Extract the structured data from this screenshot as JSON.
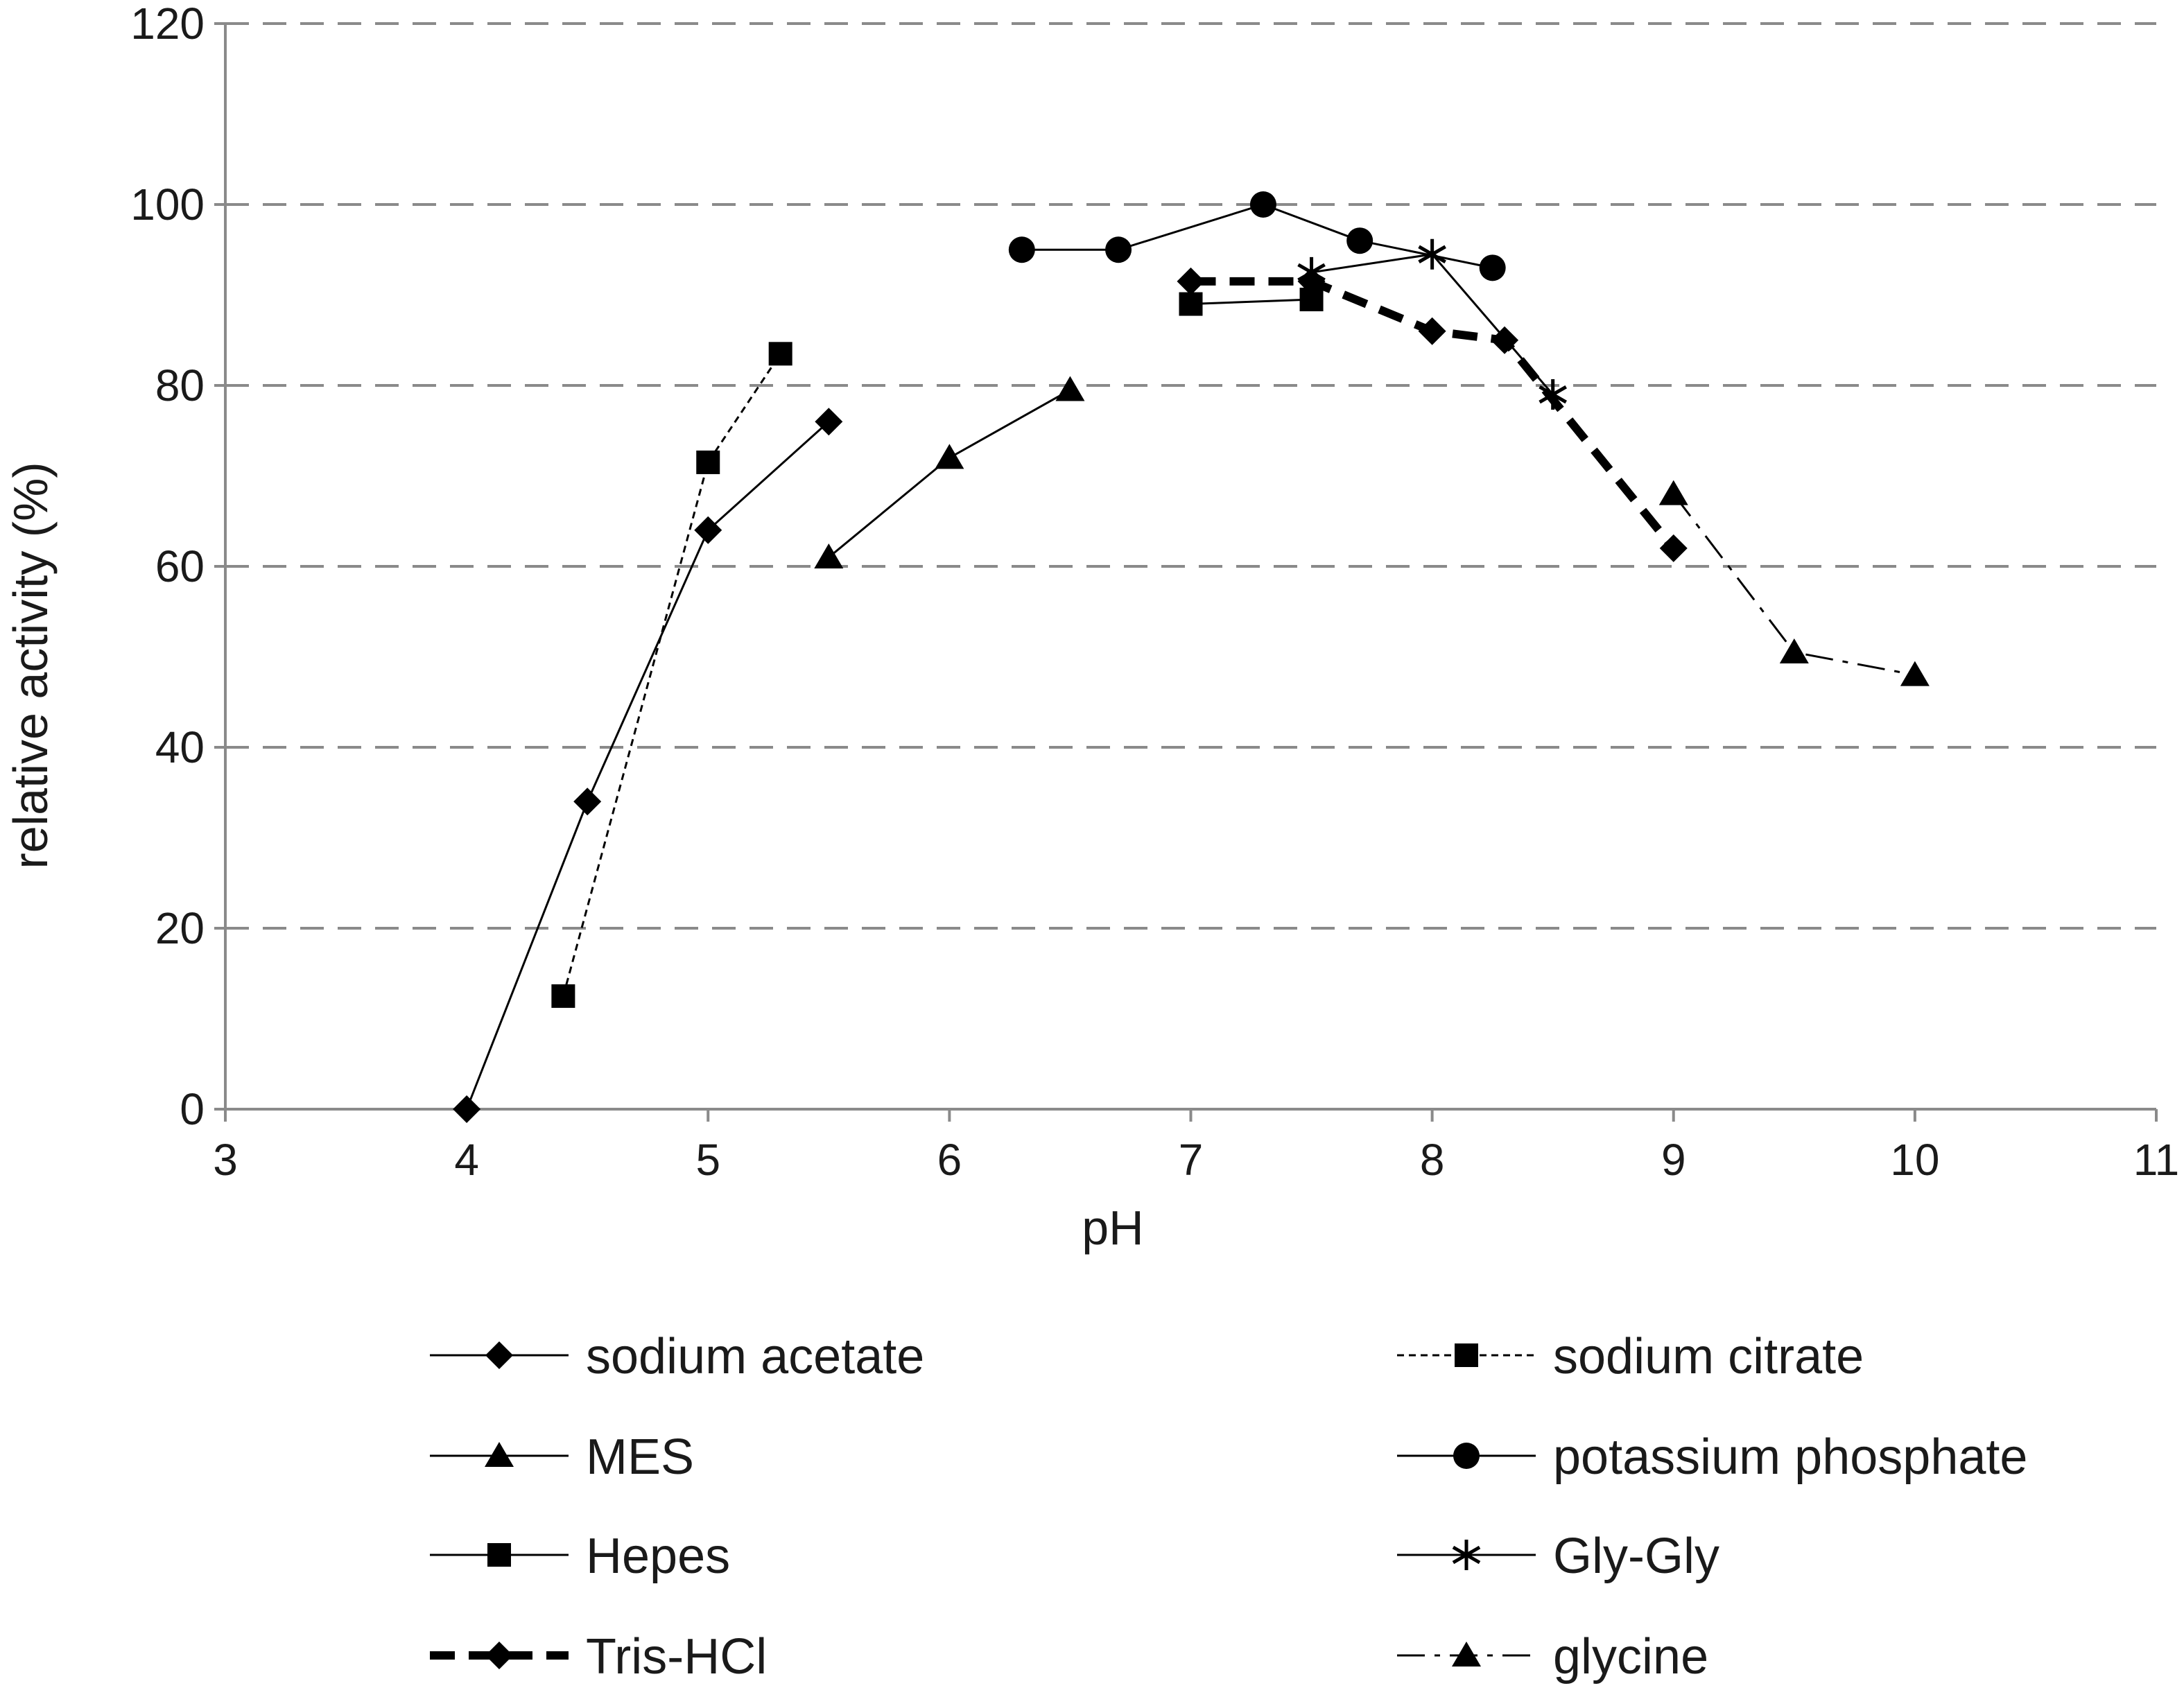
{
  "chart_data": {
    "type": "line",
    "xlabel": "pH",
    "ylabel": "relative activity (%)",
    "xlim": [
      3,
      11
    ],
    "ylim": [
      0,
      120
    ],
    "x_ticks": [
      "3",
      "4",
      "5",
      "6",
      "7",
      "8",
      "9",
      "10",
      "11"
    ],
    "y_ticks": [
      "0",
      "20",
      "40",
      "60",
      "80",
      "100",
      "120"
    ],
    "grid": "horizontal dashed",
    "legend_position": "bottom",
    "series": [
      {
        "name": "sodium acetate",
        "marker": "diamond",
        "line": "solid",
        "points": [
          [
            4.0,
            0
          ],
          [
            4.5,
            34
          ],
          [
            5.0,
            64
          ],
          [
            5.5,
            76
          ]
        ]
      },
      {
        "name": "sodium citrate",
        "marker": "square",
        "line": "dotted",
        "points": [
          [
            4.4,
            12.5
          ],
          [
            5.0,
            71.5
          ],
          [
            5.3,
            83.5
          ]
        ]
      },
      {
        "name": "MES",
        "marker": "triangle",
        "line": "solid",
        "points": [
          [
            5.5,
            61
          ],
          [
            6.0,
            72
          ],
          [
            6.5,
            79.5
          ]
        ]
      },
      {
        "name": "potassium phosphate",
        "marker": "circle",
        "line": "solid",
        "points": [
          [
            6.3,
            95
          ],
          [
            6.7,
            95
          ],
          [
            7.3,
            100
          ],
          [
            7.7,
            96
          ],
          [
            8.25,
            93
          ]
        ]
      },
      {
        "name": "Hepes",
        "marker": "square",
        "line": "solid",
        "points": [
          [
            7.0,
            89
          ],
          [
            7.5,
            89.5
          ]
        ]
      },
      {
        "name": "Gly-Gly",
        "marker": "star",
        "line": "solid",
        "points": [
          [
            7.5,
            92.5
          ],
          [
            8.0,
            94.5
          ],
          [
            8.5,
            79
          ]
        ]
      },
      {
        "name": "Tris-HCl",
        "marker": "diamond",
        "line": "bold-dashed",
        "points": [
          [
            7.0,
            91.5
          ],
          [
            7.5,
            91.5
          ],
          [
            8.0,
            86
          ],
          [
            8.3,
            85
          ],
          [
            9.0,
            62
          ]
        ]
      },
      {
        "name": "glycine",
        "marker": "triangle",
        "line": "dash-dot",
        "points": [
          [
            9.0,
            68
          ],
          [
            9.5,
            50.5
          ],
          [
            10.0,
            48
          ]
        ]
      }
    ]
  }
}
